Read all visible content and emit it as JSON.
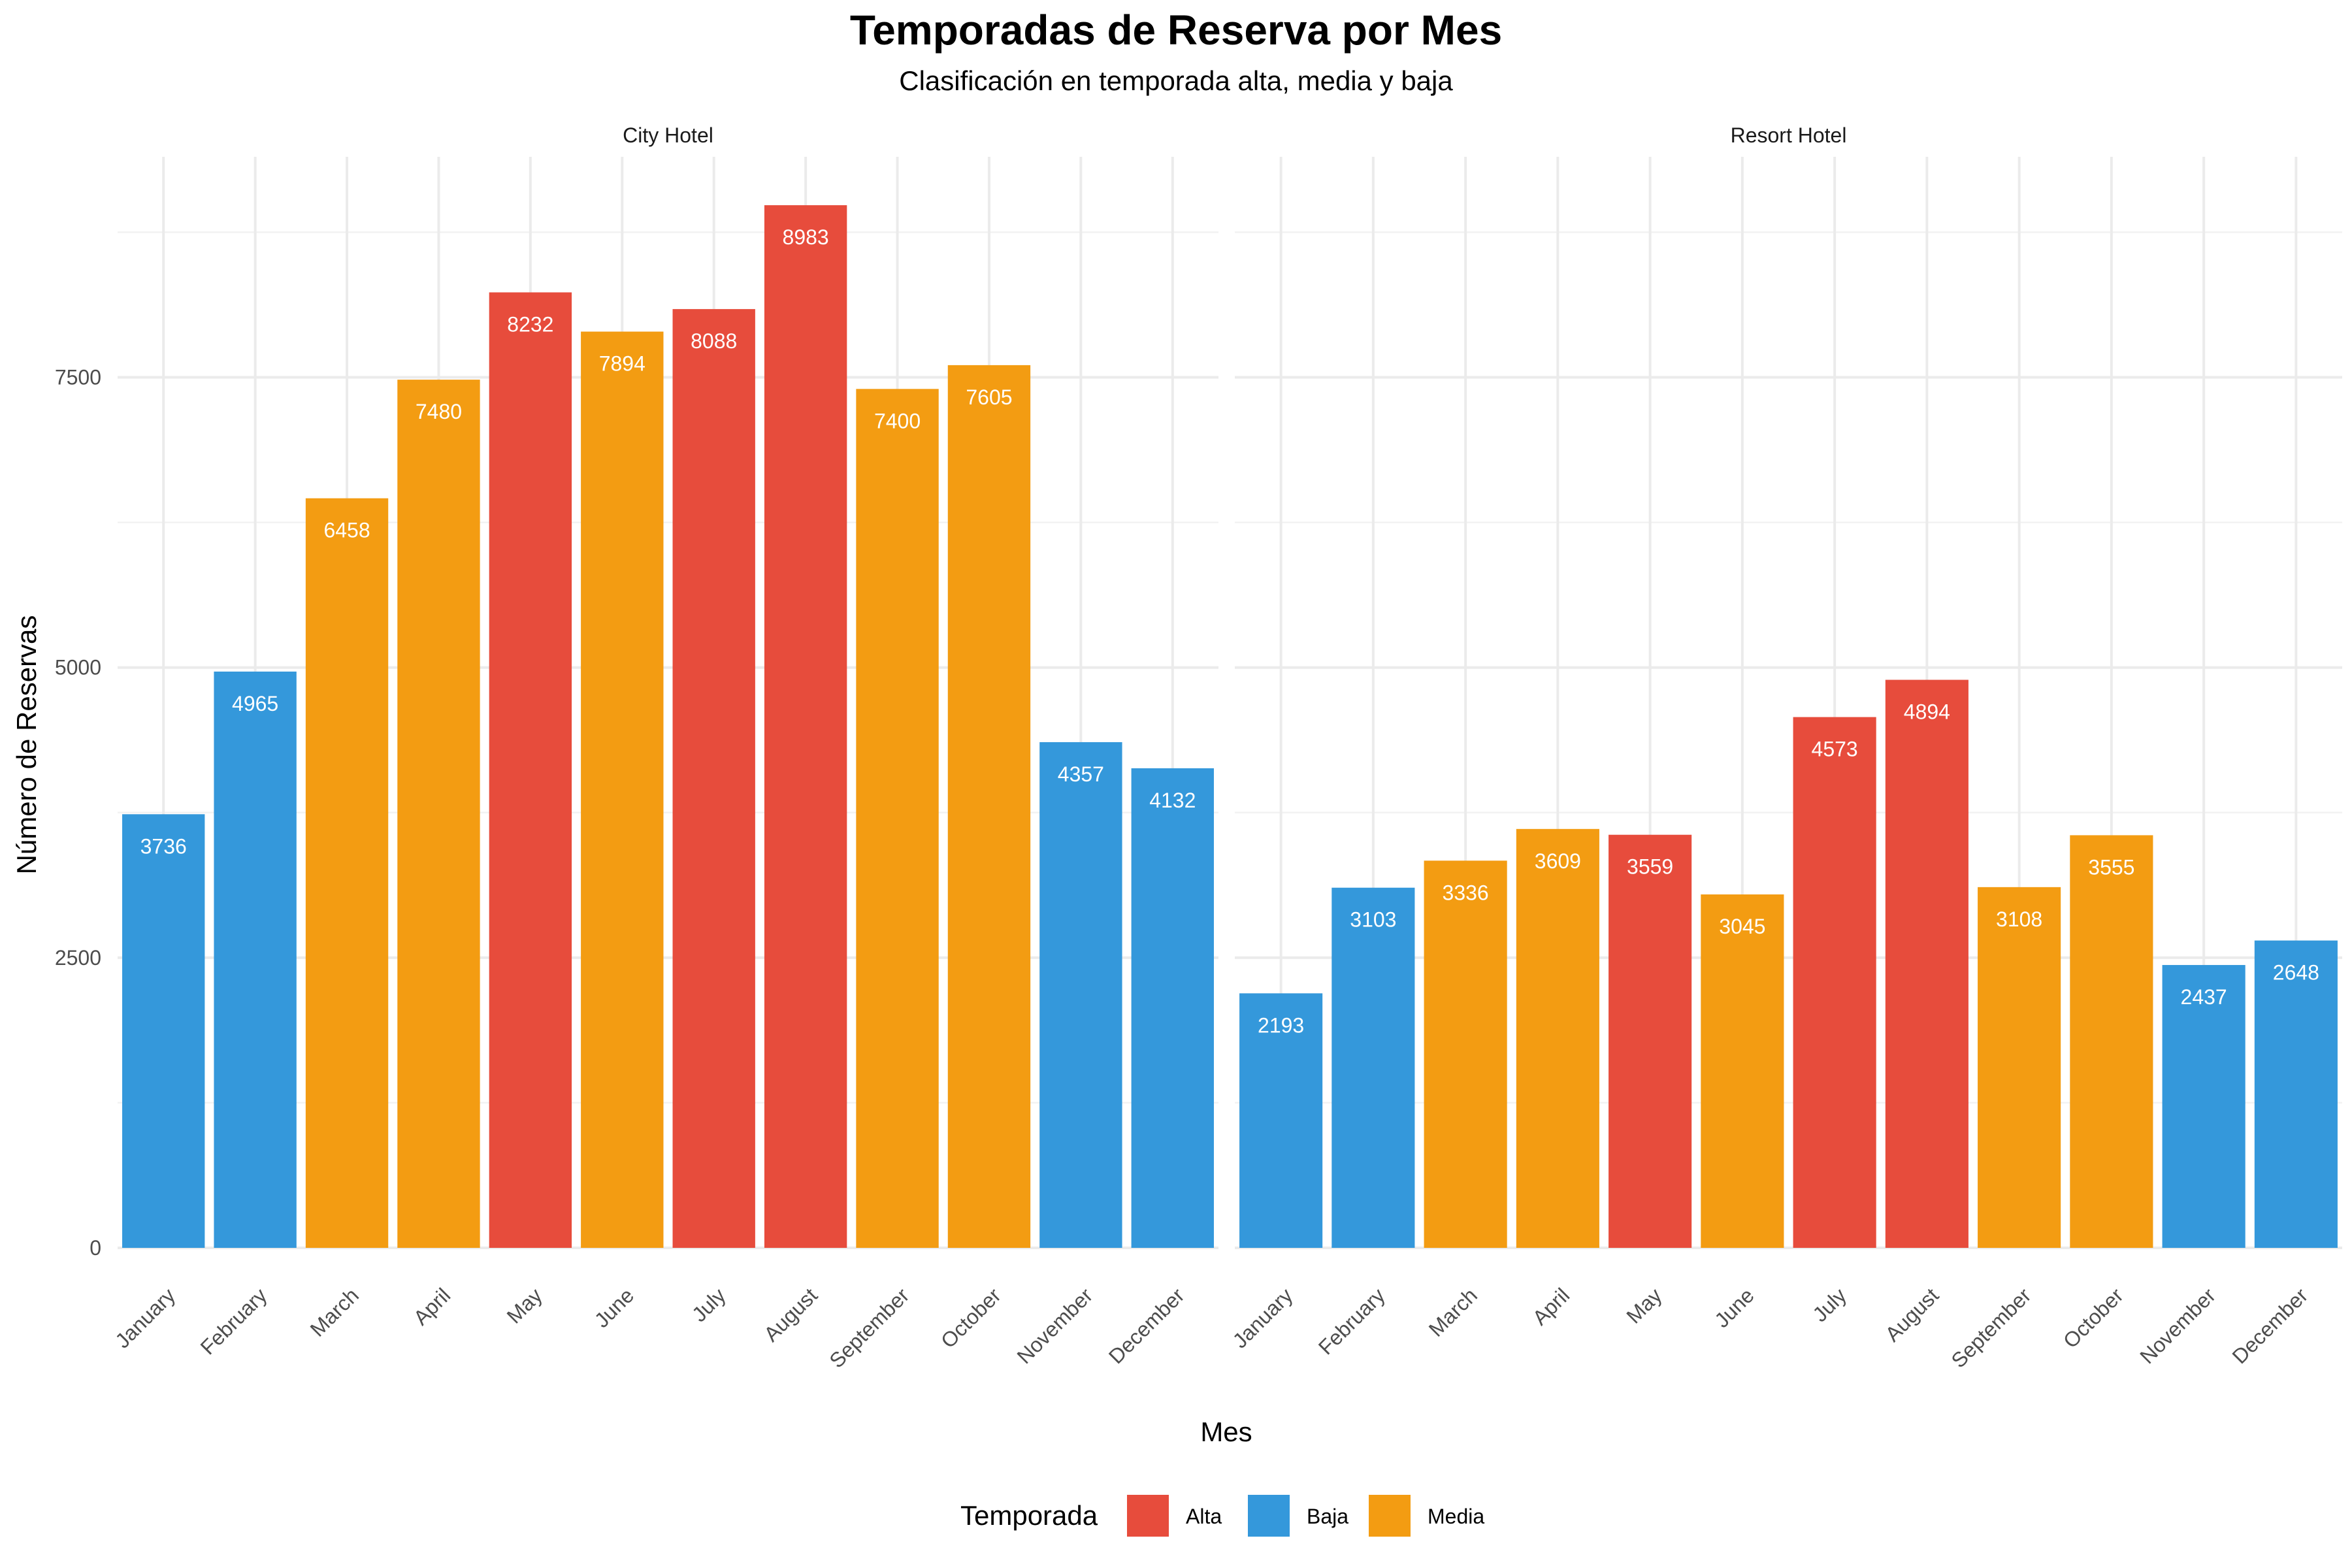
{
  "chart_data": {
    "type": "bar",
    "title": "Temporadas de Reserva por Mes",
    "subtitle": "Clasificación en temporada alta, media y baja",
    "xlabel": "Mes",
    "ylabel": "Número de Reservas",
    "ylim": [
      0,
      9400
    ],
    "yticks": [
      0,
      2500,
      5000,
      7500
    ],
    "ytick_labels": [
      "0",
      "2500",
      "5000",
      "7500"
    ],
    "grid": true,
    "legend": {
      "title": "Temporada",
      "position": "bottom",
      "entries": [
        {
          "label": "Alta",
          "color": "#E74C3C"
        },
        {
          "label": "Baja",
          "color": "#3498DB"
        },
        {
          "label": "Media",
          "color": "#F39C12"
        }
      ]
    },
    "categories": [
      "January",
      "February",
      "March",
      "April",
      "May",
      "June",
      "July",
      "August",
      "September",
      "October",
      "November",
      "December"
    ],
    "panels": [
      {
        "name": "City Hotel",
        "values": [
          3736,
          4965,
          6458,
          7480,
          8232,
          7894,
          8088,
          8983,
          7400,
          7605,
          4357,
          4132
        ],
        "seasons": [
          "Baja",
          "Baja",
          "Media",
          "Media",
          "Alta",
          "Media",
          "Alta",
          "Alta",
          "Media",
          "Media",
          "Baja",
          "Baja"
        ]
      },
      {
        "name": "Resort Hotel",
        "values": [
          2193,
          3103,
          3336,
          3609,
          3559,
          3045,
          4573,
          4894,
          3108,
          3555,
          2437,
          2648
        ],
        "seasons": [
          "Baja",
          "Baja",
          "Media",
          "Media",
          "Alta",
          "Media",
          "Alta",
          "Alta",
          "Media",
          "Media",
          "Baja",
          "Baja"
        ]
      }
    ]
  }
}
